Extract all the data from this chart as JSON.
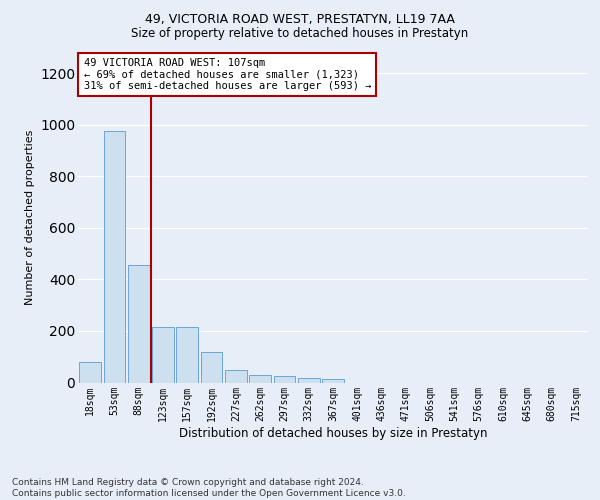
{
  "title": "49, VICTORIA ROAD WEST, PRESTATYN, LL19 7AA",
  "subtitle": "Size of property relative to detached houses in Prestatyn",
  "xlabel": "Distribution of detached houses by size in Prestatyn",
  "ylabel": "Number of detached properties",
  "bar_color": "#cde0f0",
  "bar_edge_color": "#5b9bd5",
  "vline_color": "#aa0000",
  "vline_x_index": 2.5,
  "annotation_text": "49 VICTORIA ROAD WEST: 107sqm\n← 69% of detached houses are smaller (1,323)\n31% of semi-detached houses are larger (593) →",
  "annotation_box_facecolor": "#ffffff",
  "annotation_box_edgecolor": "#aa0000",
  "categories": [
    "18sqm",
    "53sqm",
    "88sqm",
    "123sqm",
    "157sqm",
    "192sqm",
    "227sqm",
    "262sqm",
    "297sqm",
    "332sqm",
    "367sqm",
    "401sqm",
    "436sqm",
    "471sqm",
    "506sqm",
    "541sqm",
    "576sqm",
    "610sqm",
    "645sqm",
    "680sqm",
    "715sqm"
  ],
  "values": [
    80,
    975,
    455,
    215,
    215,
    120,
    50,
    28,
    25,
    18,
    12,
    0,
    0,
    0,
    0,
    0,
    0,
    0,
    0,
    0,
    0
  ],
  "ylim": [
    0,
    1280
  ],
  "yticks": [
    0,
    200,
    400,
    600,
    800,
    1000,
    1200
  ],
  "footer_line1": "Contains HM Land Registry data © Crown copyright and database right 2024.",
  "footer_line2": "Contains public sector information licensed under the Open Government Licence v3.0.",
  "background_color": "#e8eef8",
  "grid_color": "#ffffff",
  "title_fontsize": 9,
  "subtitle_fontsize": 8.5,
  "xlabel_fontsize": 8.5,
  "ylabel_fontsize": 8,
  "tick_fontsize": 7,
  "annotation_fontsize": 7.5,
  "footer_fontsize": 6.5
}
